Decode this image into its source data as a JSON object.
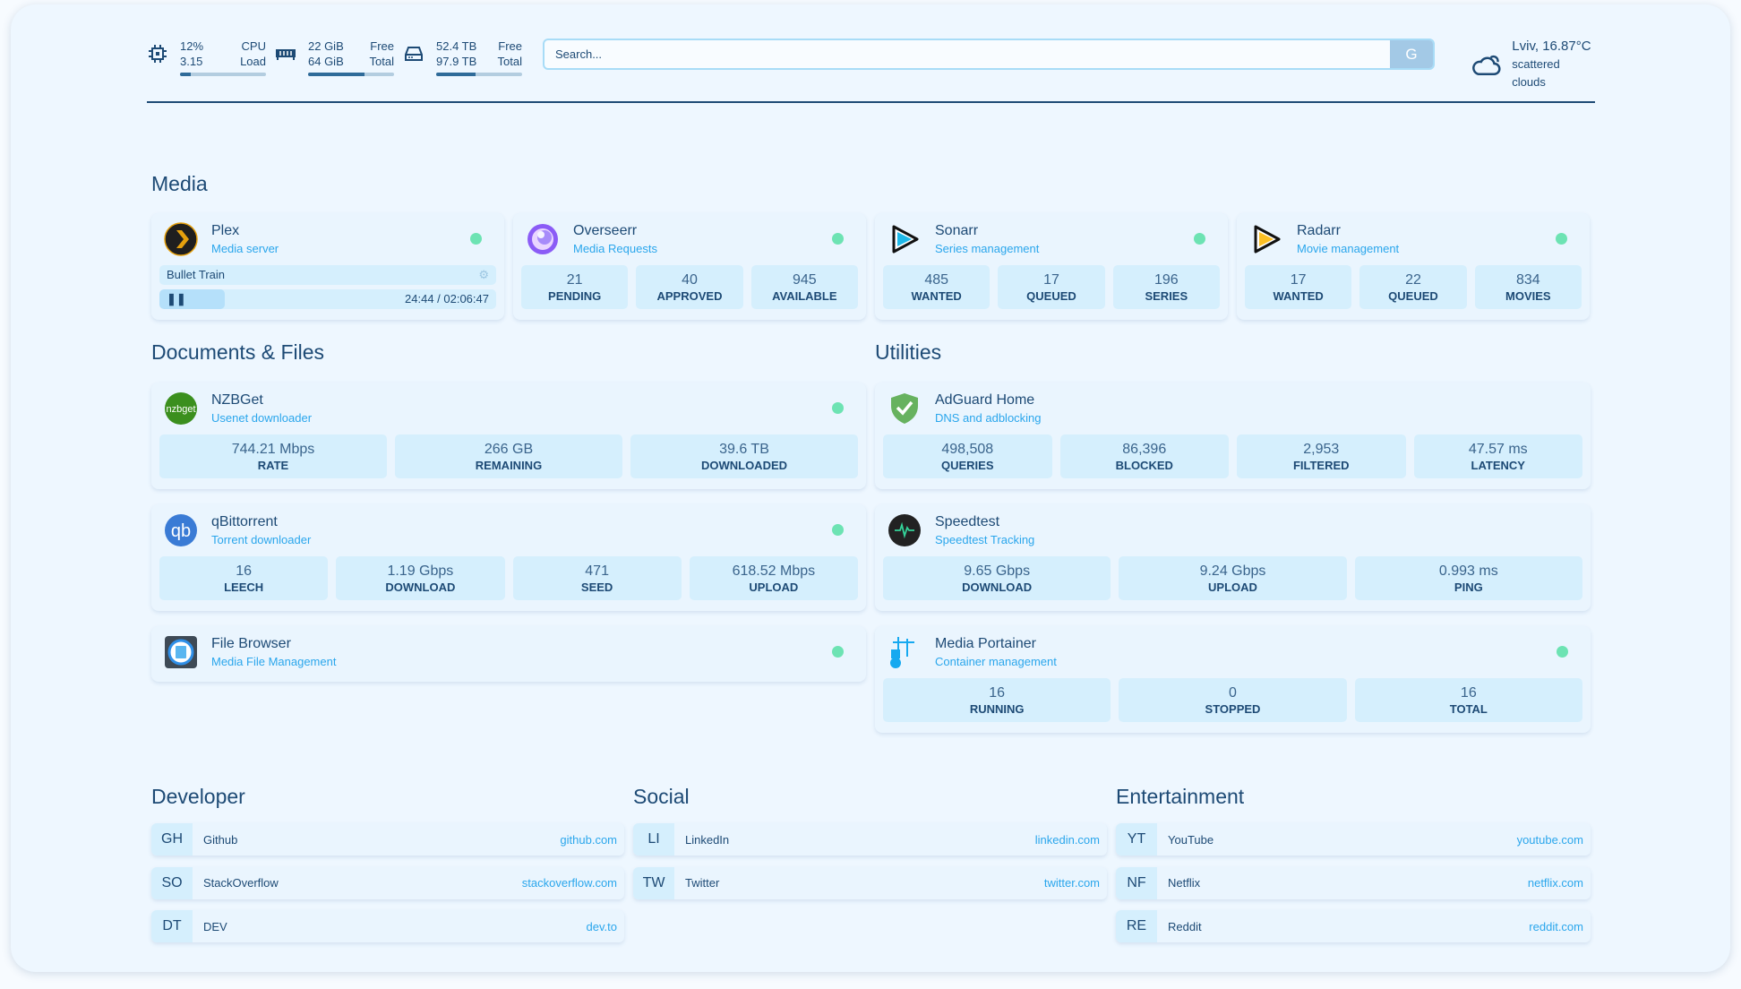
{
  "resources": [
    {
      "icon": "cpu-icon",
      "v1": "12%",
      "l1": "CPU",
      "v2": "3.15",
      "l2": "Load",
      "fill": 12
    },
    {
      "icon": "memory-icon",
      "v1": "22 GiB",
      "l1": "Free",
      "v2": "64 GiB",
      "l2": "Total",
      "fill": 66
    },
    {
      "icon": "disk-icon",
      "v1": "52.4 TB",
      "l1": "Free",
      "v2": "97.9 TB",
      "l2": "Total",
      "fill": 46
    }
  ],
  "search": {
    "placeholder": "Search...",
    "button": "G"
  },
  "weather": {
    "icon": "cloud-icon",
    "location": "Lviv, 16.87°C",
    "condition": "scattered clouds"
  },
  "sections": {
    "media": "Media",
    "docs": "Documents & Files",
    "utilities": "Utilities",
    "developer": "Developer",
    "social": "Social",
    "entertainment": "Entertainment"
  },
  "plex": {
    "name": "Plex",
    "desc": "Media server",
    "title": "Bullet Train",
    "time": "24:44 / 02:06:47",
    "progress": 19.5
  },
  "services": {
    "overseerr": {
      "name": "Overseerr",
      "desc": "Media Requests",
      "stats": [
        {
          "v": "21",
          "l": "PENDING"
        },
        {
          "v": "40",
          "l": "APPROVED"
        },
        {
          "v": "945",
          "l": "AVAILABLE"
        }
      ]
    },
    "sonarr": {
      "name": "Sonarr",
      "desc": "Series management",
      "stats": [
        {
          "v": "485",
          "l": "WANTED"
        },
        {
          "v": "17",
          "l": "QUEUED"
        },
        {
          "v": "196",
          "l": "SERIES"
        }
      ]
    },
    "radarr": {
      "name": "Radarr",
      "desc": "Movie management",
      "stats": [
        {
          "v": "17",
          "l": "WANTED"
        },
        {
          "v": "22",
          "l": "QUEUED"
        },
        {
          "v": "834",
          "l": "MOVIES"
        }
      ]
    },
    "nzbget": {
      "name": "NZBGet",
      "desc": "Usenet downloader",
      "stats": [
        {
          "v": "744.21 Mbps",
          "l": "RATE"
        },
        {
          "v": "266 GB",
          "l": "REMAINING"
        },
        {
          "v": "39.6 TB",
          "l": "DOWNLOADED"
        }
      ]
    },
    "qbittorrent": {
      "name": "qBittorrent",
      "desc": "Torrent downloader",
      "stats": [
        {
          "v": "16",
          "l": "LEECH"
        },
        {
          "v": "1.19 Gbps",
          "l": "DOWNLOAD"
        },
        {
          "v": "471",
          "l": "SEED"
        },
        {
          "v": "618.52 Mbps",
          "l": "UPLOAD"
        }
      ]
    },
    "filebrowser": {
      "name": "File Browser",
      "desc": "Media File Management",
      "stats": []
    },
    "adguard": {
      "name": "AdGuard Home",
      "desc": "DNS and adblocking",
      "stats": [
        {
          "v": "498,508",
          "l": "QUERIES"
        },
        {
          "v": "86,396",
          "l": "BLOCKED"
        },
        {
          "v": "2,953",
          "l": "FILTERED"
        },
        {
          "v": "47.57 ms",
          "l": "LATENCY"
        }
      ]
    },
    "speedtest": {
      "name": "Speedtest",
      "desc": "Speedtest Tracking",
      "stats": [
        {
          "v": "9.65 Gbps",
          "l": "DOWNLOAD"
        },
        {
          "v": "9.24 Gbps",
          "l": "UPLOAD"
        },
        {
          "v": "0.993 ms",
          "l": "PING"
        }
      ]
    },
    "portainer": {
      "name": "Media Portainer",
      "desc": "Container management",
      "stats": [
        {
          "v": "16",
          "l": "RUNNING"
        },
        {
          "v": "0",
          "l": "STOPPED"
        },
        {
          "v": "16",
          "l": "TOTAL"
        }
      ]
    }
  },
  "bookmarks": {
    "developer": [
      {
        "abbr": "GH",
        "name": "Github",
        "url": "github.com"
      },
      {
        "abbr": "SO",
        "name": "StackOverflow",
        "url": "stackoverflow.com"
      },
      {
        "abbr": "DT",
        "name": "DEV",
        "url": "dev.to"
      }
    ],
    "social": [
      {
        "abbr": "LI",
        "name": "LinkedIn",
        "url": "linkedin.com"
      },
      {
        "abbr": "TW",
        "name": "Twitter",
        "url": "twitter.com"
      }
    ],
    "entertainment": [
      {
        "abbr": "YT",
        "name": "YouTube",
        "url": "youtube.com"
      },
      {
        "abbr": "NF",
        "name": "Netflix",
        "url": "netflix.com"
      },
      {
        "abbr": "RE",
        "name": "Reddit",
        "url": "reddit.com"
      }
    ]
  },
  "colors": {
    "text": "#1d4a75",
    "accent": "#2aa6ec",
    "status_ok": "#6de3b3",
    "stat_bg": "#d5effd"
  }
}
